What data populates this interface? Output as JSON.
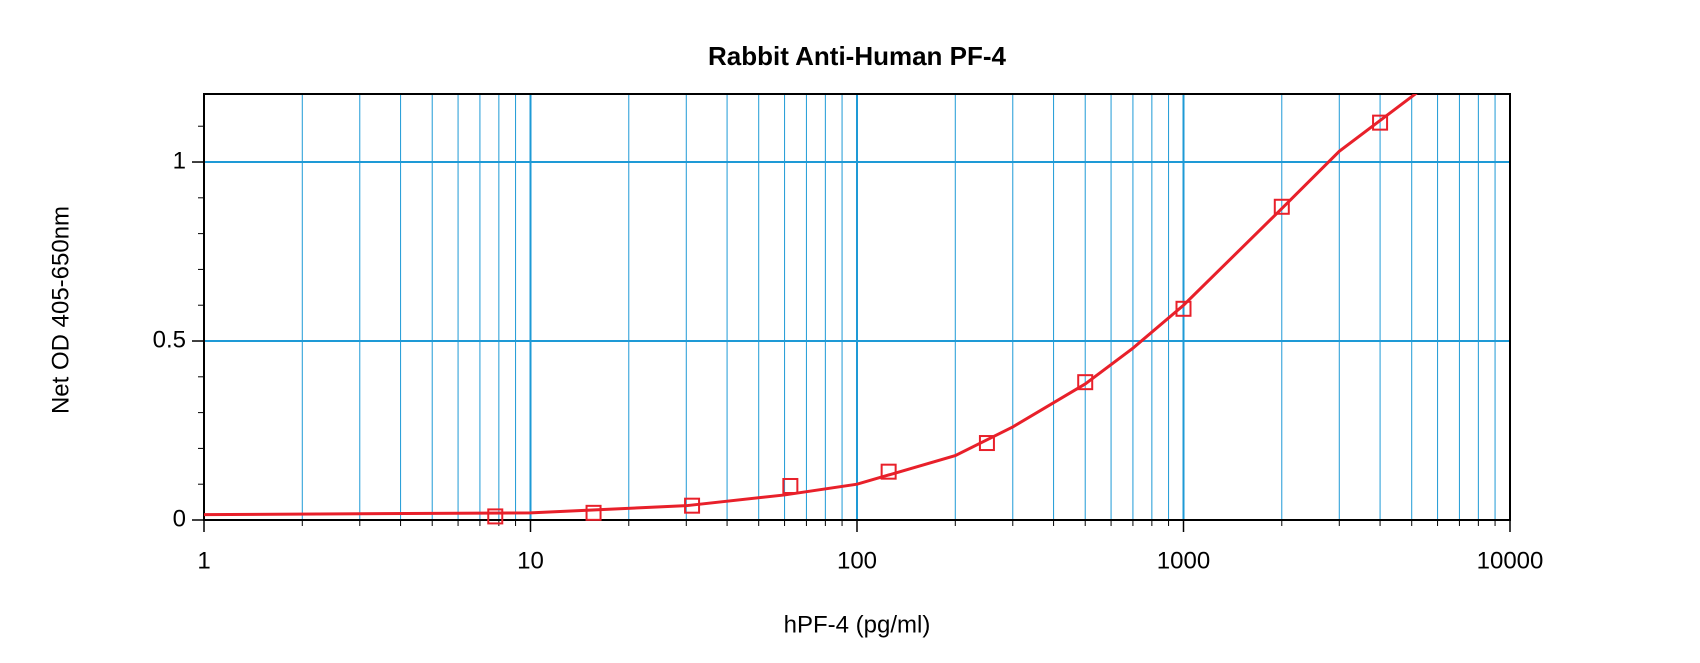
{
  "chart_data": {
    "type": "scatter",
    "title": "Rabbit Anti-Human PF-4",
    "xlabel": "hPF-4 (pg/ml)",
    "ylabel": "Net OD 405-650nm",
    "xscale": "log",
    "xlim": [
      1,
      10000
    ],
    "xticks": [
      1,
      10,
      100,
      1000,
      10000
    ],
    "xminor_ticks": [
      2,
      3,
      4,
      5,
      6,
      7,
      8,
      9,
      20,
      30,
      40,
      50,
      60,
      70,
      80,
      90,
      200,
      300,
      400,
      500,
      600,
      700,
      800,
      900,
      2000,
      3000,
      4000,
      5000,
      6000,
      7000,
      8000,
      9000
    ],
    "ylim": [
      0,
      1.19
    ],
    "yticks": [
      0,
      0.5,
      1
    ],
    "yminor_ticks": [
      0.1,
      0.2,
      0.3,
      0.4,
      0.6,
      0.7,
      0.8,
      0.9,
      1.1
    ],
    "grid": true,
    "grid_color": "#1e9ad6",
    "series": [
      {
        "color": "#e8202a",
        "marker": "square",
        "x": [
          7.8,
          15.6,
          31.25,
          62.5,
          125,
          250,
          500,
          1000,
          2000,
          4000
        ],
        "values": [
          0.01,
          0.02,
          0.04,
          0.095,
          0.135,
          0.215,
          0.385,
          0.59,
          0.875,
          1.11
        ]
      }
    ],
    "curve": {
      "color": "#e8202a",
      "x": [
        1,
        10,
        30,
        60,
        100,
        200,
        300,
        500,
        700,
        1000,
        2000,
        3000,
        5300
      ],
      "values": [
        0.015,
        0.02,
        0.04,
        0.07,
        0.1,
        0.18,
        0.26,
        0.38,
        0.48,
        0.6,
        0.87,
        1.03,
        1.2
      ]
    }
  }
}
